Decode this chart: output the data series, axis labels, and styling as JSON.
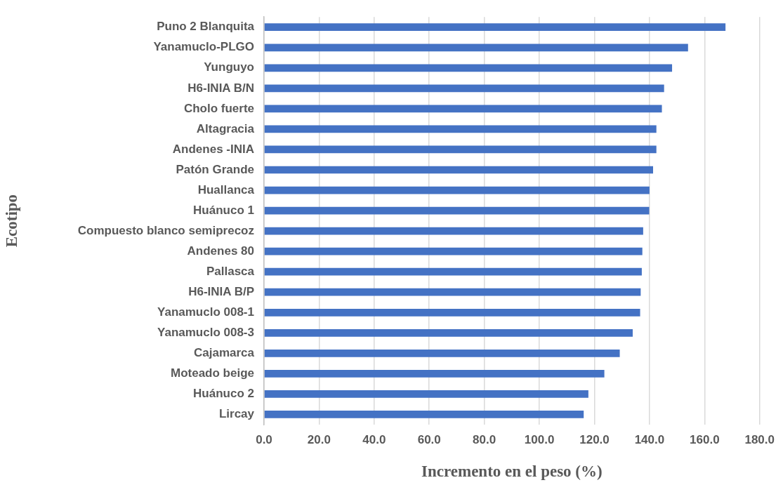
{
  "chart_data": {
    "type": "bar",
    "orientation": "horizontal",
    "xlabel": "Incremento en el peso (%)",
    "ylabel": "Ecotipo",
    "categories": [
      "Puno 2 Blanquita",
      "Yanamuclo-PLGO",
      "Yunguyo",
      "H6-INIA B/N",
      "Cholo fuerte",
      "Altagracia",
      "Andenes -INIA",
      "Patón Grande",
      "Huallanca",
      "Huánuco 1",
      "Compuesto blanco semiprecoz",
      "Andenes 80",
      "Pallasca",
      "H6-INIA B/P",
      "Yanamuclo 008-1",
      "Yanamuclo 008-3",
      "Cajamarca",
      "Moteado beige",
      "Huánuco 2",
      "Lircay"
    ],
    "values": [
      167.6,
      154.0,
      148.2,
      145.3,
      144.5,
      142.5,
      142.5,
      141.3,
      140.0,
      139.9,
      137.7,
      137.4,
      137.2,
      136.8,
      136.6,
      133.9,
      129.2,
      123.6,
      117.8,
      116.1
    ],
    "color": "#4472c4",
    "xlim": [
      0,
      180
    ],
    "xticks": [
      {
        "value": 0,
        "label": "0.0"
      },
      {
        "value": 20,
        "label": "20.0"
      },
      {
        "value": 40,
        "label": "40.0"
      },
      {
        "value": 60,
        "label": "60.0"
      },
      {
        "value": 80,
        "label": "80.0"
      },
      {
        "value": 100,
        "label": "100.0"
      },
      {
        "value": 120,
        "label": "120.0"
      },
      {
        "value": 140,
        "label": "140.0"
      },
      {
        "value": 160,
        "label": "160.0"
      },
      {
        "value": 180,
        "label": "180.0"
      }
    ],
    "grid": "x",
    "legend": false
  }
}
